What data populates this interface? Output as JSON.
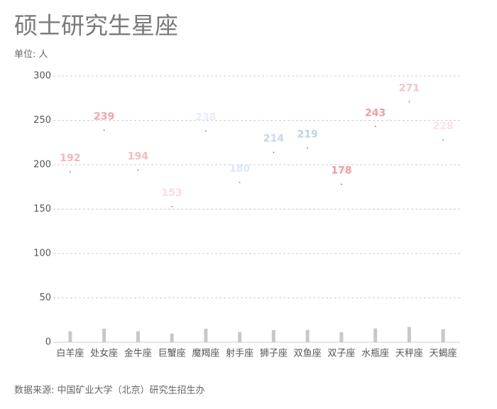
{
  "chart_data": {
    "type": "dot",
    "title": "硕士研究生星座",
    "unit_label": "单位: 人",
    "source": "数据来源: 中国矿业大学（北京）研究生招生办",
    "categories": [
      "白羊座",
      "处女座",
      "金牛座",
      "巨蟹座",
      "魔羯座",
      "射手座",
      "狮子座",
      "双鱼座",
      "双子座",
      "水瓶座",
      "天秤座",
      "天蝎座"
    ],
    "values": [
      192,
      239,
      194,
      153,
      238,
      180,
      214,
      219,
      178,
      243,
      271,
      228
    ],
    "colors": [
      "#f6b4b4",
      "#f3a3a3",
      "#f6baba",
      "#fbdcdc",
      "#e6edf7",
      "#dde6f3",
      "#c7d6ec",
      "#c0d1ea",
      "#f29c9c",
      "#f29c9c",
      "#f7c3c3",
      "#fce3e3"
    ],
    "bar_color": "#c8c8c8",
    "ylim": [
      0,
      300
    ],
    "yticks": [
      0,
      50,
      100,
      150,
      200,
      250,
      300
    ],
    "grid": true
  }
}
